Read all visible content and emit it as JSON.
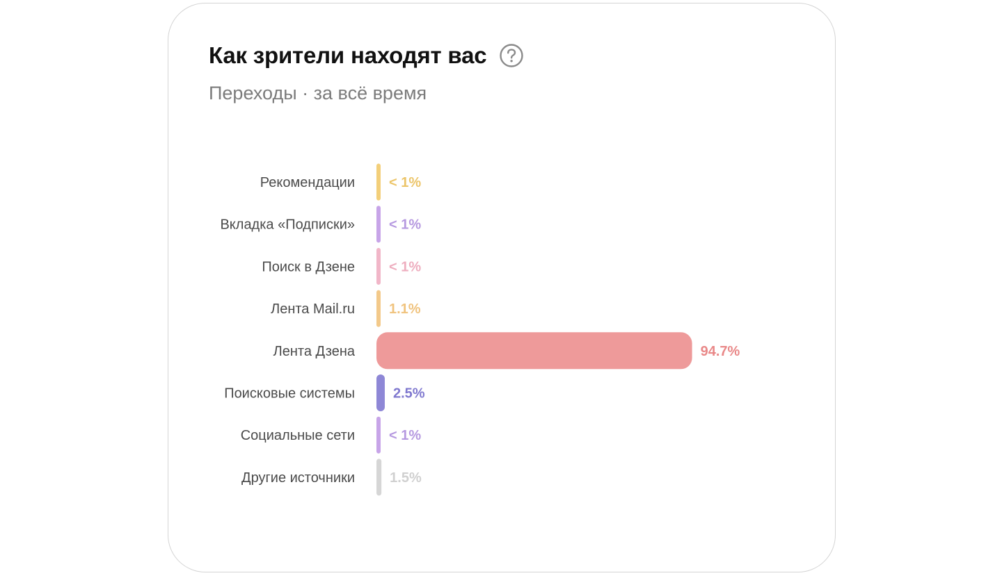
{
  "card": {
    "title": "Как зрители находят вас",
    "subtitle": "Переходы · за всё время",
    "help_icon": "question-circle-icon"
  },
  "chart_data": {
    "type": "bar",
    "orientation": "horizontal",
    "categories": [
      "Рекомендации",
      "Вкладка «Подписки»",
      "Поиск в Дзене",
      "Лента Mail.ru",
      "Лента Дзена",
      "Поисковые системы",
      "Социальные сети",
      "Другие источники"
    ],
    "values": [
      0.5,
      0.5,
      0.5,
      1.1,
      94.7,
      2.5,
      0.5,
      1.5
    ],
    "value_labels": [
      "< 1%",
      "< 1%",
      "< 1%",
      "1.1%",
      "94.7%",
      "2.5%",
      "< 1%",
      "1.5%"
    ],
    "colors": [
      "#f3cf7a",
      "#c7a4e8",
      "#f1b6c8",
      "#f3c98a",
      "#ee9a9a",
      "#8e87d6",
      "#c7a4e8",
      "#d6d6d6"
    ],
    "label_colors": [
      "#ecc56a",
      "#b699e0",
      "#eeaebf",
      "#f0c37e",
      "#e98888",
      "#7f78cf",
      "#b699e0",
      "#d0d0d0"
    ],
    "xlim": [
      0,
      100
    ],
    "title": "",
    "xlabel": "",
    "ylabel": ""
  }
}
